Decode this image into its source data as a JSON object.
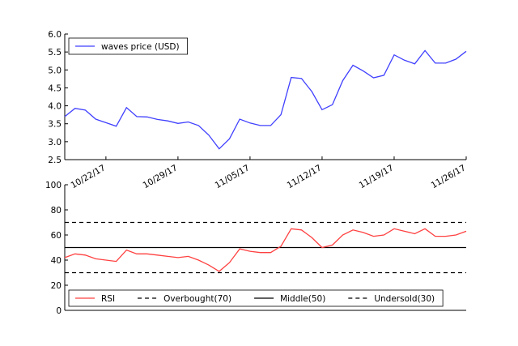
{
  "chart_data": [
    {
      "type": "line",
      "x": [
        "2017-10-18",
        "2017-10-19",
        "2017-10-20",
        "2017-10-21",
        "2017-10-22",
        "2017-10-23",
        "2017-10-24",
        "2017-10-25",
        "2017-10-26",
        "2017-10-27",
        "2017-10-28",
        "2017-10-29",
        "2017-10-30",
        "2017-10-31",
        "2017-11-01",
        "2017-11-02",
        "2017-11-03",
        "2017-11-04",
        "2017-11-05",
        "2017-11-06",
        "2017-11-07",
        "2017-11-08",
        "2017-11-09",
        "2017-11-10",
        "2017-11-11",
        "2017-11-12",
        "2017-11-13",
        "2017-11-14",
        "2017-11-15",
        "2017-11-16",
        "2017-11-17",
        "2017-11-18",
        "2017-11-19",
        "2017-11-20",
        "2017-11-21",
        "2017-11-22",
        "2017-11-23",
        "2017-11-24",
        "2017-11-25",
        "2017-11-26"
      ],
      "series": [
        {
          "name": "waves price (USD)",
          "color": "#4040ff",
          "values": [
            3.7,
            3.93,
            3.88,
            3.63,
            3.53,
            3.43,
            3.95,
            3.7,
            3.69,
            3.62,
            3.58,
            3.51,
            3.55,
            3.45,
            3.18,
            2.8,
            3.08,
            3.63,
            3.52,
            3.45,
            3.45,
            3.75,
            4.79,
            4.76,
            4.4,
            3.89,
            4.03,
            4.7,
            5.13,
            4.97,
            4.78,
            4.85,
            5.42,
            5.27,
            5.17,
            5.54,
            5.19,
            5.19,
            5.3,
            5.52
          ]
        }
      ],
      "xlim": [
        "2017-10-18",
        "2017-11-26"
      ],
      "xticks": [
        {
          "value": "2017-10-22",
          "label": "10/22/17"
        },
        {
          "value": "2017-10-29",
          "label": "10/29/17"
        },
        {
          "value": "2017-11-05",
          "label": "11/05/17"
        },
        {
          "value": "2017-11-12",
          "label": "11/12/17"
        },
        {
          "value": "2017-11-19",
          "label": "11/19/17"
        },
        {
          "value": "2017-11-26",
          "label": "11/26/17"
        }
      ],
      "ylim": [
        2.5,
        6.0
      ],
      "yticks": [
        2.5,
        {
          "value": 3,
          "label": "3.0"
        },
        3.5,
        {
          "value": 4,
          "label": "4.0"
        },
        4.5,
        {
          "value": 5,
          "label": "5.0"
        },
        5.5,
        {
          "value": 6,
          "label": "6.0"
        }
      ],
      "legend": "upper left"
    },
    {
      "type": "line",
      "x": [
        "2017-10-18",
        "2017-10-19",
        "2017-10-20",
        "2017-10-21",
        "2017-10-22",
        "2017-10-23",
        "2017-10-24",
        "2017-10-25",
        "2017-10-26",
        "2017-10-27",
        "2017-10-28",
        "2017-10-29",
        "2017-10-30",
        "2017-10-31",
        "2017-11-01",
        "2017-11-02",
        "2017-11-03",
        "2017-11-04",
        "2017-11-05",
        "2017-11-06",
        "2017-11-07",
        "2017-11-08",
        "2017-11-09",
        "2017-11-10",
        "2017-11-11",
        "2017-11-12",
        "2017-11-13",
        "2017-11-14",
        "2017-11-15",
        "2017-11-16",
        "2017-11-17",
        "2017-11-18",
        "2017-11-19",
        "2017-11-20",
        "2017-11-21",
        "2017-11-22",
        "2017-11-23",
        "2017-11-24",
        "2017-11-25",
        "2017-11-26"
      ],
      "series": [
        {
          "name": "RSI",
          "color": "#ff4040",
          "values": [
            42,
            45,
            44,
            41,
            40,
            39,
            48,
            45,
            45,
            44,
            43,
            42,
            43,
            40,
            36,
            31,
            38,
            49,
            47,
            46,
            46,
            51,
            65,
            64,
            58,
            50,
            52,
            60,
            64,
            62,
            59,
            60,
            65,
            63,
            61,
            65,
            59,
            59,
            60,
            63
          ]
        }
      ],
      "hlines": [
        {
          "name": "Overbought(70)",
          "value": 70,
          "color": "#000000",
          "dash": true
        },
        {
          "name": "Middle(50)",
          "value": 50,
          "color": "#000000",
          "dash": false
        },
        {
          "name": "Undersold(30)",
          "value": 30,
          "color": "#000000",
          "dash": true
        }
      ],
      "xlim": [
        "2017-10-18",
        "2017-11-26"
      ],
      "ylim": [
        0,
        100
      ],
      "yticks": [
        0,
        20,
        40,
        60,
        80,
        100
      ],
      "legend": "lower left"
    }
  ]
}
